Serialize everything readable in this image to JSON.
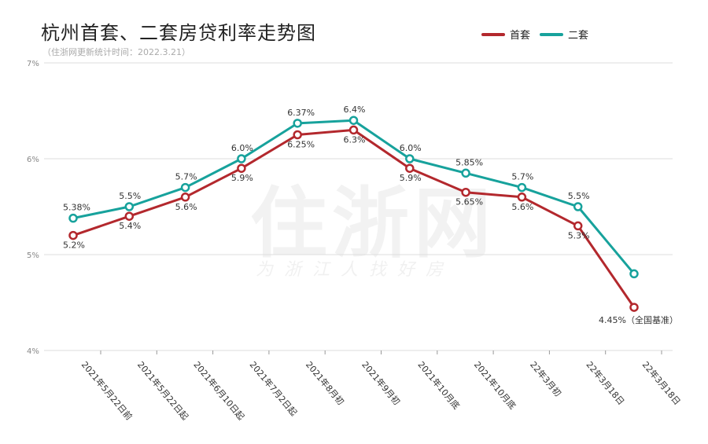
{
  "title": "杭州首套、二套房贷利率走势图",
  "subtitle": "（住浙网更新统计时间：2022.3.21）",
  "watermark": {
    "main": "住浙网",
    "tagline": "为浙江人找好房"
  },
  "colors": {
    "first": "#b3282d",
    "second": "#17a29c",
    "grid": "#dddddd"
  },
  "chart_data": {
    "type": "line",
    "categories": [
      "2021年5月22日前",
      "2021年5月22日起",
      "2021年6月10日起",
      "2021年7月2日起",
      "2021年8月初",
      "2021年9月初",
      "2021年10月底",
      "2021年10月底",
      "22年3月初",
      "22年3月18日",
      "22年3月18日"
    ],
    "series": [
      {
        "name": "首套",
        "values": [
          5.2,
          5.4,
          5.6,
          5.9,
          6.25,
          6.3,
          5.9,
          5.65,
          5.6,
          5.3,
          4.45
        ],
        "labels": [
          "5.2%",
          "5.4%",
          "5.6%",
          "5.9%",
          "6.25%",
          "6.3%",
          "5.9%",
          "5.65%",
          "5.6%",
          "5.3%",
          "4.45%（全国基准）"
        ]
      },
      {
        "name": "二套",
        "values": [
          5.38,
          5.5,
          5.7,
          6.0,
          6.37,
          6.4,
          6.0,
          5.85,
          5.7,
          5.5,
          4.8
        ],
        "labels": [
          "5.38%",
          "5.5%",
          "5.7%",
          "6.0%",
          "6.37%",
          "6.4%",
          "6.0%",
          "5.85%",
          "5.7%",
          "5.5%",
          ""
        ]
      }
    ],
    "ylim": [
      4,
      7
    ],
    "yticks": [
      "4%",
      "5%",
      "6%",
      "7%"
    ],
    "grid": true,
    "legend_position": "top-right"
  }
}
